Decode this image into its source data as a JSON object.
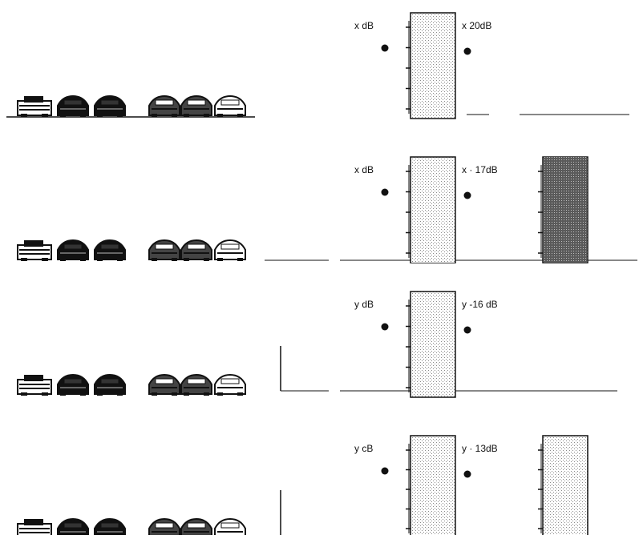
{
  "colors": {
    "ink": "#111111",
    "light_fill": "#ffffff",
    "dark_fill": "#6e6e6e",
    "speckle": "#8a8a8a"
  },
  "rows": [
    {
      "id": "row-1",
      "left_label": "x dB",
      "right_label": "x  20dB",
      "left_bar_fill_level": 0.0,
      "has_second_bar": false,
      "second_bar_fill_level": 0.0
    },
    {
      "id": "row-2",
      "left_label": "x dB",
      "right_label": "x · 17dB",
      "left_bar_fill_level": 0.5,
      "has_second_bar": true,
      "second_bar_fill_level": 1.0
    },
    {
      "id": "row-3",
      "left_label": "y dB",
      "right_label": "y -16 dB",
      "left_bar_fill_level": 0.0,
      "has_second_bar": false,
      "second_bar_fill_level": 0.0
    },
    {
      "id": "row-4",
      "left_label": "y cB",
      "right_label": "y · 13dB",
      "left_bar_fill_level": 0.7,
      "has_second_bar": true,
      "second_bar_fill_level": 0.9
    }
  ],
  "icons": {
    "vehicle_row": [
      "car-front-icon",
      "car-dark-icon",
      "car-dark-icon",
      "car-gray-icon",
      "car-gray-icon",
      "car-light-icon"
    ]
  }
}
